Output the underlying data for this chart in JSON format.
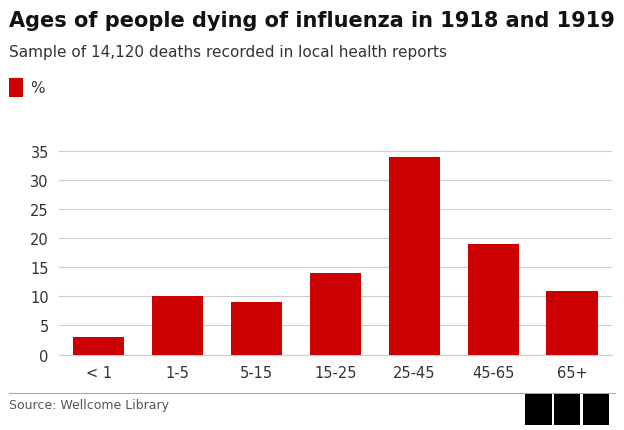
{
  "title": "Ages of people dying of influenza in 1918 and 1919",
  "subtitle": "Sample of 14,120 deaths recorded in local health reports",
  "legend_label": "%",
  "source": "Source: Wellcome Library",
  "categories": [
    "< 1",
    "1-5",
    "5-15",
    "15-25",
    "25-45",
    "45-65",
    "65+"
  ],
  "values": [
    3,
    10,
    9,
    14,
    34,
    19,
    11
  ],
  "bar_color": "#cc0000",
  "background_color": "#ffffff",
  "ylim": [
    0,
    37
  ],
  "yticks": [
    0,
    5,
    10,
    15,
    20,
    25,
    30,
    35
  ],
  "title_fontsize": 15,
  "subtitle_fontsize": 11,
  "tick_fontsize": 10.5,
  "source_fontsize": 9,
  "legend_fontsize": 11,
  "grid_color": "#cccccc"
}
